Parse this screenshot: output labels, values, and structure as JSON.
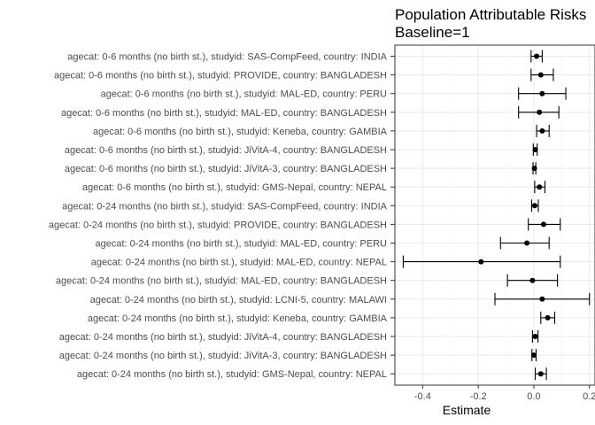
{
  "chart_data": {
    "type": "forest",
    "title_lines": [
      "Population Attributable Risks",
      "Baseline=1"
    ],
    "xlabel": "Estimate",
    "xlim": [
      -0.5,
      0.22
    ],
    "xticks": [
      -0.4,
      -0.2,
      0.0,
      0.2
    ],
    "xtick_labels": [
      "-0.4",
      "-0.2",
      "0.0",
      "0.2"
    ],
    "grid": true,
    "rows": [
      {
        "label": "agecat: 0-6 months (no birth st.), studyid: SAS-CompFeed, country: INDIA",
        "estimate": 0.01,
        "lower": -0.01,
        "upper": 0.03
      },
      {
        "label": "agecat: 0-6 months (no birth st.), studyid: PROVIDE, country: BANGLADESH",
        "estimate": 0.025,
        "lower": -0.01,
        "upper": 0.07
      },
      {
        "label": "agecat: 0-6 months (no birth st.), studyid: MAL-ED, country: PERU",
        "estimate": 0.03,
        "lower": -0.055,
        "upper": 0.115
      },
      {
        "label": "agecat: 0-6 months (no birth st.), studyid: MAL-ED, country: BANGLADESH",
        "estimate": 0.02,
        "lower": -0.055,
        "upper": 0.09
      },
      {
        "label": "agecat: 0-6 months (no birth st.), studyid: Keneba, country: GAMBIA",
        "estimate": 0.03,
        "lower": 0.01,
        "upper": 0.055
      },
      {
        "label": "agecat: 0-6 months (no birth st.), studyid: JiVitA-4, country: BANGLADESH",
        "estimate": 0.005,
        "lower": -0.002,
        "upper": 0.012
      },
      {
        "label": "agecat: 0-6 months (no birth st.), studyid: JiVitA-3, country: BANGLADESH",
        "estimate": 0.002,
        "lower": -0.003,
        "upper": 0.007
      },
      {
        "label": "agecat: 0-6 months (no birth st.), studyid: GMS-Nepal, country: NEPAL",
        "estimate": 0.02,
        "lower": 0.003,
        "upper": 0.04
      },
      {
        "label": "agecat: 0-24 months (no birth st.), studyid: SAS-CompFeed, country: INDIA",
        "estimate": 0.003,
        "lower": -0.008,
        "upper": 0.016
      },
      {
        "label": "agecat: 0-24 months (no birth st.), studyid: PROVIDE, country: BANGLADESH",
        "estimate": 0.035,
        "lower": -0.02,
        "upper": 0.095
      },
      {
        "label": "agecat: 0-24 months (no birth st.), studyid: MAL-ED, country: PERU",
        "estimate": -0.025,
        "lower": -0.12,
        "upper": 0.055
      },
      {
        "label": "agecat: 0-24 months (no birth st.), studyid: MAL-ED, country: NEPAL",
        "estimate": -0.19,
        "lower": -0.47,
        "upper": 0.095
      },
      {
        "label": "agecat: 0-24 months (no birth st.), studyid: MAL-ED, country: BANGLADESH",
        "estimate": -0.005,
        "lower": -0.095,
        "upper": 0.085
      },
      {
        "label": "agecat: 0-24 months (no birth st.), studyid: LCNI-5, country: MALAWI",
        "estimate": 0.03,
        "lower": -0.14,
        "upper": 0.2
      },
      {
        "label": "agecat: 0-24 months (no birth st.), studyid: Keneba, country: GAMBIA",
        "estimate": 0.05,
        "lower": 0.025,
        "upper": 0.075
      },
      {
        "label": "agecat: 0-24 months (no birth st.), studyid: JiVitA-4, country: BANGLADESH",
        "estimate": 0.005,
        "lower": -0.005,
        "upper": 0.015
      },
      {
        "label": "agecat: 0-24 months (no birth st.), studyid: JiVitA-3, country: BANGLADESH",
        "estimate": 0.0,
        "lower": -0.007,
        "upper": 0.008
      },
      {
        "label": "agecat: 0-24 months (no birth st.), studyid: GMS-Nepal, country: NEPAL",
        "estimate": 0.025,
        "lower": 0.005,
        "upper": 0.045
      }
    ],
    "colors": {
      "point": "#000000",
      "errorbar": "#000000",
      "panel_border": "#333333",
      "grid_major": "#ebebeb",
      "grid_minor": "#f5f5f5",
      "label_text": "#4d4d4d"
    }
  }
}
